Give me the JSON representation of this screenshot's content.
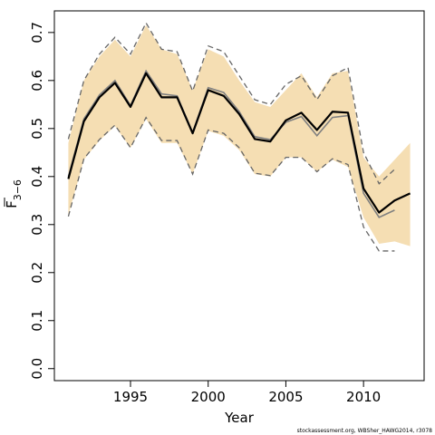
{
  "chart_data": {
    "type": "line",
    "xlabel": "Year",
    "ylabel_main": "F",
    "ylabel_sub": "3−6",
    "credit": "stockassessment.org, WBSher_HAWG2014, r3078",
    "xlim": [
      1990.1,
      2013.9
    ],
    "ylim": [
      -0.025,
      0.745
    ],
    "x_ticks": [
      1995,
      2000,
      2005,
      2010
    ],
    "x_tick_labels": [
      "1995",
      "2000",
      "2005",
      "2010"
    ],
    "y_ticks": [
      0.0,
      0.1,
      0.2,
      0.3,
      0.4,
      0.5,
      0.6,
      0.7
    ],
    "y_tick_labels": [
      "0.0",
      "0.1",
      "0.2",
      "0.3",
      "0.4",
      "0.5",
      "0.6",
      "0.7"
    ],
    "grid": false,
    "legend": "none",
    "colors": {
      "band": "#f5deb3",
      "main_line": "#000000",
      "previous_line": "#808080",
      "previous_bounds": "#666666"
    },
    "band": {
      "x": [
        1991,
        1992,
        1993,
        1994,
        1995,
        1996,
        1997,
        1998,
        1999,
        2000,
        2001,
        2002,
        2003,
        2004,
        2005,
        2006,
        2007,
        2008,
        2009,
        2010,
        2011,
        2012,
        2013
      ],
      "upper": [
        0.47,
        0.6,
        0.65,
        0.685,
        0.65,
        0.715,
        0.665,
        0.655,
        0.58,
        0.665,
        0.65,
        0.6,
        0.555,
        0.545,
        0.58,
        0.615,
        0.565,
        0.615,
        0.62,
        0.44,
        0.4,
        0.435,
        0.47
      ],
      "lower": [
        0.32,
        0.435,
        0.475,
        0.505,
        0.46,
        0.52,
        0.47,
        0.47,
        0.405,
        0.495,
        0.485,
        0.455,
        0.405,
        0.4,
        0.44,
        0.44,
        0.41,
        0.435,
        0.42,
        0.315,
        0.26,
        0.265,
        0.255
      ]
    },
    "series": [
      {
        "values": [
          0.395,
          0.515,
          0.565,
          0.595,
          0.545,
          0.615,
          0.565,
          0.565,
          0.49,
          0.58,
          0.568,
          0.53,
          0.478,
          0.473,
          0.517,
          0.533,
          0.497,
          0.535,
          0.533,
          0.375,
          0.325,
          0.35,
          0.365
        ],
        "x": [
          1991,
          1992,
          1993,
          1994,
          1995,
          1996,
          1997,
          1998,
          1999,
          2000,
          2001,
          2002,
          2003,
          2004,
          2005,
          2006,
          2007,
          2008,
          2009,
          2010,
          2011,
          2012,
          2013
        ]
      },
      {
        "values": [
          0.4,
          0.52,
          0.57,
          0.6,
          0.548,
          0.62,
          0.572,
          0.568,
          0.492,
          0.585,
          0.575,
          0.535,
          0.483,
          0.477,
          0.513,
          0.525,
          0.485,
          0.523,
          0.527,
          0.365,
          0.315,
          0.33
        ],
        "x": [
          1991,
          1992,
          1993,
          1994,
          1995,
          1996,
          1997,
          1998,
          1999,
          2000,
          2001,
          2002,
          2003,
          2004,
          2005,
          2006,
          2007,
          2008,
          2009,
          2010,
          2011,
          2012
        ]
      }
    ],
    "previous_upper": {
      "x": [
        1991,
        1992,
        1993,
        1994,
        1995,
        1996,
        1997,
        1998,
        1999,
        2000,
        2001,
        2002,
        2003,
        2004,
        2005,
        2006,
        2007,
        2008,
        2009,
        2010,
        2011,
        2012
      ],
      "values": [
        0.478,
        0.6,
        0.655,
        0.69,
        0.655,
        0.72,
        0.665,
        0.66,
        0.578,
        0.672,
        0.66,
        0.61,
        0.56,
        0.55,
        0.592,
        0.61,
        0.56,
        0.61,
        0.627,
        0.45,
        0.385,
        0.415
      ]
    },
    "previous_lower": {
      "x": [
        1991,
        1992,
        1993,
        1994,
        1995,
        1996,
        1997,
        1998,
        1999,
        2000,
        2001,
        2002,
        2003,
        2004,
        2005,
        2006,
        2007,
        2008,
        2009,
        2010,
        2011,
        2012
      ],
      "values": [
        0.317,
        0.437,
        0.477,
        0.507,
        0.46,
        0.523,
        0.475,
        0.475,
        0.405,
        0.497,
        0.49,
        0.46,
        0.407,
        0.402,
        0.44,
        0.44,
        0.41,
        0.437,
        0.425,
        0.295,
        0.245,
        0.245
      ]
    }
  }
}
